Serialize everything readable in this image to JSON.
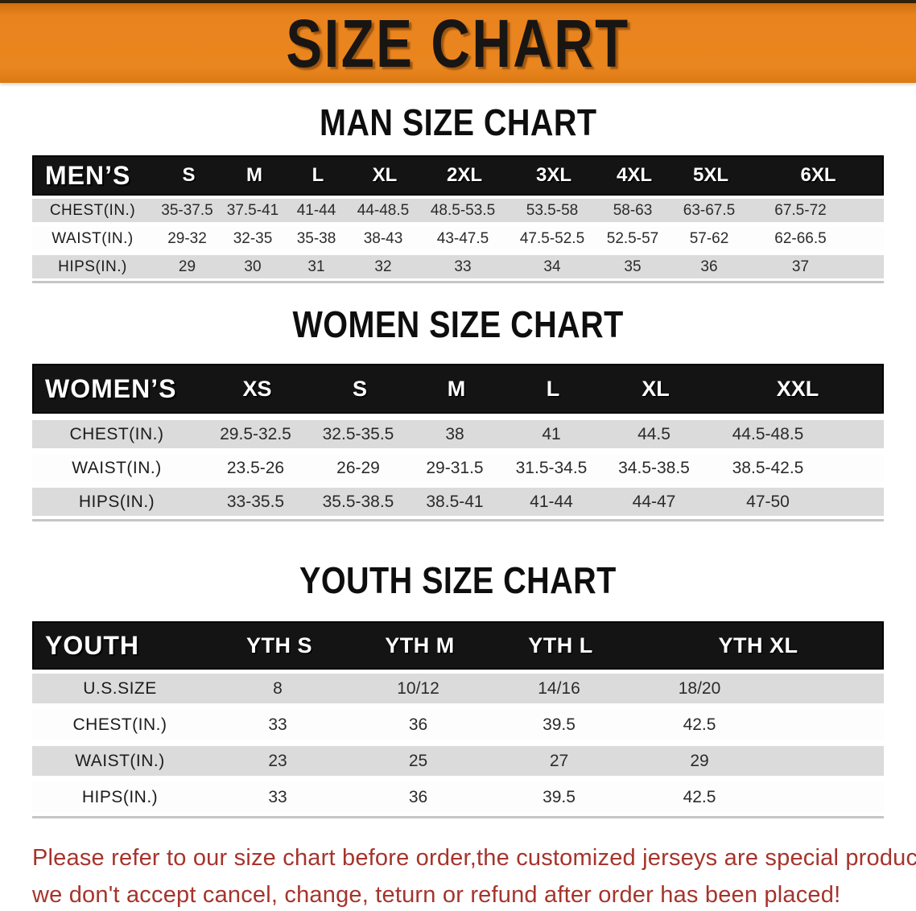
{
  "banner": {
    "title": "SIZE CHART",
    "bg_color": "#E9831D",
    "text_color": "#191512"
  },
  "tables": {
    "men": {
      "heading": "MAN SIZE CHART",
      "corner": "MEN’S",
      "columns": [
        "S",
        "M",
        "L",
        "XL",
        "2XL",
        "3XL",
        "4XL",
        "5XL",
        "6XL"
      ],
      "rows": [
        {
          "label": "CHEST(IN.)",
          "values": [
            "35-37.5",
            "37.5-41",
            "41-44",
            "44-48.5",
            "48.5-53.5",
            "53.5-58",
            "58-63",
            "63-67.5",
            "67.5-72"
          ]
        },
        {
          "label": "WAIST(IN.)",
          "values": [
            "29-32",
            "32-35",
            "35-38",
            "38-43",
            "43-47.5",
            "47.5-52.5",
            "52.5-57",
            "57-62",
            "62-66.5"
          ]
        },
        {
          "label": "HIPS(IN.)",
          "values": [
            "29",
            "30",
            "31",
            "32",
            "33",
            "34",
            "35",
            "36",
            "37"
          ]
        }
      ]
    },
    "women": {
      "heading": "WOMEN SIZE CHART",
      "corner": "WOMEN’S",
      "columns": [
        "XS",
        "S",
        "M",
        "L",
        "XL",
        "XXL"
      ],
      "rows": [
        {
          "label": "CHEST(IN.)",
          "values": [
            "29.5-32.5",
            "32.5-35.5",
            "38",
            "41",
            "44.5",
            "44.5-48.5"
          ]
        },
        {
          "label": "WAIST(IN.)",
          "values": [
            "23.5-26",
            "26-29",
            "29-31.5",
            "31.5-34.5",
            "34.5-38.5",
            "38.5-42.5"
          ]
        },
        {
          "label": "HIPS(IN.)",
          "values": [
            "33-35.5",
            "35.5-38.5",
            "38.5-41",
            "41-44",
            "44-47",
            "47-50"
          ]
        }
      ]
    },
    "youth": {
      "heading": "YOUTH SIZE CHART",
      "corner": "YOUTH",
      "columns": [
        "YTH S",
        "YTH M",
        "YTH L",
        "YTH XL"
      ],
      "rows": [
        {
          "label": "U.S.SIZE",
          "values": [
            "8",
            "10/12",
            "14/16",
            "18/20"
          ]
        },
        {
          "label": "CHEST(IN.)",
          "values": [
            "33",
            "36",
            "39.5",
            "42.5"
          ]
        },
        {
          "label": "WAIST(IN.)",
          "values": [
            "23",
            "25",
            "27",
            "29"
          ]
        },
        {
          "label": "HIPS(IN.)",
          "values": [
            "33",
            "36",
            "39.5",
            "42.5"
          ]
        }
      ]
    }
  },
  "colors": {
    "header_bar": "#141414",
    "row_gray": "#DBDBDB",
    "note_red": "#A6342C"
  },
  "note": {
    "line1": "Please refer to our size chart before order,the customized jerseys are special products,",
    "line2": "we don't accept cancel, change, teturn or refund after order has been placed!"
  }
}
